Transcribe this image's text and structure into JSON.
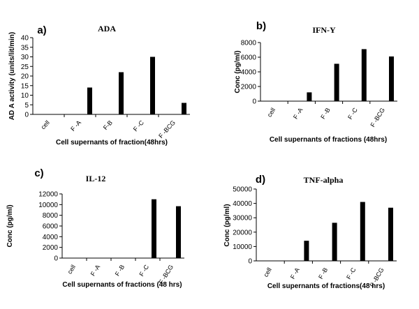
{
  "chart_data": [
    {
      "panel": "a)",
      "type": "bar",
      "title": "ADA",
      "categories": [
        "cell",
        "F -A",
        "F-B",
        "F -C",
        "F -BCG"
      ],
      "values": [
        0,
        14,
        22,
        30,
        6
      ],
      "xlabel": "Cell supernants of fraction(48hrs)",
      "ylabel": "AD A activity (units/lit/min)",
      "ylim": [
        0,
        40
      ],
      "yticks": [
        0,
        5,
        10,
        15,
        20,
        25,
        30,
        35,
        40
      ],
      "legend": "none",
      "grid": false
    },
    {
      "panel": "b)",
      "type": "bar",
      "title": "IFN-Y",
      "categories": [
        "cell",
        "F -A",
        "F -B",
        "F -C",
        "F -BCG"
      ],
      "values": [
        0,
        1200,
        5100,
        7100,
        6100
      ],
      "xlabel": "Cell supernants of fractions (48hrs)",
      "ylabel": "Conc (pg/ml)",
      "ylim": [
        0,
        8000
      ],
      "yticks": [
        0,
        2000,
        4000,
        6000,
        8000
      ],
      "legend": "none",
      "grid": false
    },
    {
      "panel": "c)",
      "type": "bar",
      "title": "IL-12",
      "categories": [
        "cell",
        "F -A",
        "F -B",
        "F -C",
        "F -BCG"
      ],
      "values": [
        0,
        0,
        0,
        11000,
        9700
      ],
      "xlabel": "Cell supernants of fractions (48 hrs)",
      "ylabel": "Conc (pg/ml)",
      "ylim": [
        0,
        12000
      ],
      "yticks": [
        0,
        2000,
        4000,
        6000,
        8000,
        10000,
        12000
      ],
      "legend": "none",
      "grid": false
    },
    {
      "panel": "d)",
      "type": "bar",
      "title": "TNF-alpha",
      "categories": [
        "cell",
        "F -A",
        "F -B",
        "F -C",
        "F -BCG"
      ],
      "values": [
        0,
        14000,
        26500,
        41000,
        37000
      ],
      "xlabel": "Cell supernants of fractions(48 hrs)",
      "ylabel": "Conc (pg/ml)",
      "ylim": [
        0,
        50000
      ],
      "yticks": [
        0,
        10000,
        20000,
        30000,
        40000,
        50000
      ],
      "legend": "none",
      "grid": false
    }
  ]
}
